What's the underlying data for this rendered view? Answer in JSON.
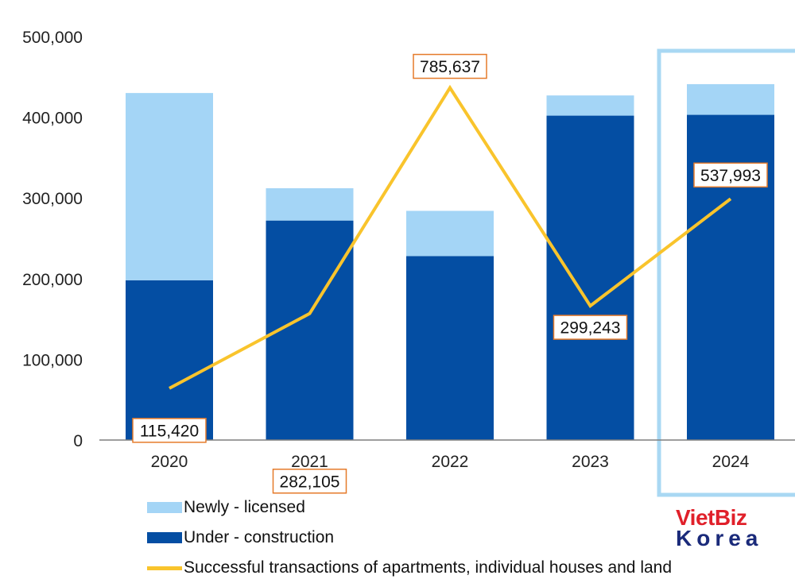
{
  "chart_data": {
    "type": "bar",
    "stacked": true,
    "categories": [
      "2020",
      "2021",
      "2022",
      "2023",
      "2024"
    ],
    "series": [
      {
        "name": "Under - construction",
        "kind": "bar",
        "values": [
          198000,
          272000,
          228000,
          402000,
          403000
        ]
      },
      {
        "name": "Newly - licensed",
        "kind": "bar",
        "values": [
          232000,
          40000,
          56000,
          25000,
          38000
        ]
      },
      {
        "name": "Successful transactions of apartments, individual houses and land",
        "kind": "line",
        "values": [
          115420,
          282105,
          785637,
          299243,
          537993
        ],
        "labels": [
          "115,420",
          "282,105",
          "785,637",
          "299,243",
          "537,993"
        ]
      }
    ],
    "ylim": [
      0,
      500000
    ],
    "yticks": [
      "0",
      "100,000",
      "200,000",
      "300,000",
      "400,000",
      "500,000"
    ],
    "line_axis_max": 900000,
    "highlight_category": "2024",
    "colors": {
      "newly_licensed": "#a4d5f6",
      "under_construction": "#044ea3",
      "transactions_line": "#f9c42c",
      "label_border": "#e57a2a",
      "highlight_box": "#a9d8f3"
    }
  },
  "legend": {
    "newly": "Newly - licensed",
    "under": "Under - construction",
    "line": "Successful transactions of apartments, individual houses and land"
  },
  "watermark": {
    "top": "VietBiz",
    "bottom": "Korea"
  }
}
